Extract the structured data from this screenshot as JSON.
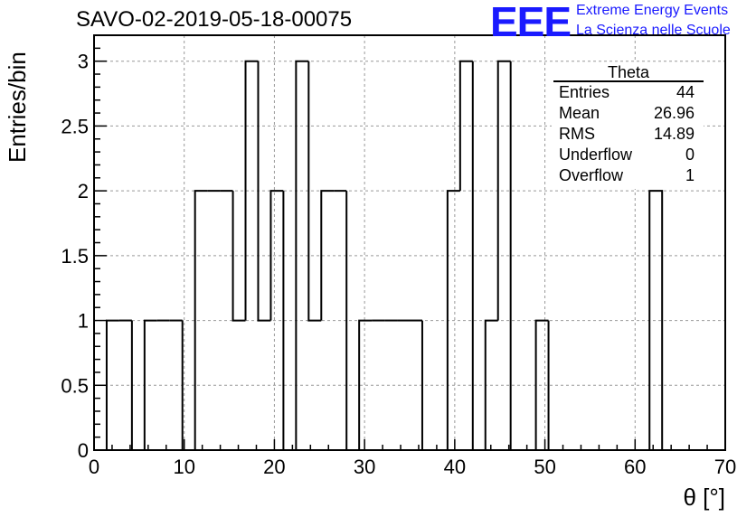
{
  "title": "SAVO-02-2019-05-18-00075",
  "logo": {
    "mark": "EEE",
    "line1": "Extreme Energy Events",
    "line2": "La Scienza nelle Scuole",
    "color": "#1a1aff"
  },
  "stats_box": {
    "title": "Theta",
    "rows": [
      {
        "label": "Entries",
        "value": "44"
      },
      {
        "label": "Mean",
        "value": "26.96"
      },
      {
        "label": "RMS",
        "value": "14.89"
      },
      {
        "label": "Underflow",
        "value": "0"
      },
      {
        "label": "Overflow",
        "value": "1"
      }
    ]
  },
  "chart_data": {
    "type": "bar",
    "histogram": true,
    "xlabel": "θ [°]",
    "ylabel": "Entries/bin",
    "xlim": [
      0,
      70
    ],
    "ylim": [
      0,
      3.2
    ],
    "grid": true,
    "xticks": [
      0,
      10,
      20,
      30,
      40,
      50,
      60,
      70
    ],
    "yticks": [
      0,
      0.5,
      1,
      1.5,
      2,
      2.5,
      3
    ],
    "ytick_labels": [
      "0",
      "0.5",
      "1",
      "1.5",
      "2",
      "2.5",
      "3"
    ],
    "bin_edges": [
      1.4,
      2.8,
      4.2,
      5.6,
      7.0,
      8.4,
      9.8,
      11.2,
      12.6,
      14.0,
      15.4,
      16.8,
      18.2,
      19.6,
      21.0,
      22.4,
      23.8,
      25.2,
      26.6,
      28.0,
      29.4,
      30.8,
      32.2,
      33.6,
      35.0,
      36.4,
      37.8,
      39.2,
      40.6,
      42.0,
      43.4,
      44.8,
      46.2,
      47.6,
      49.0,
      50.4,
      51.8,
      53.2,
      54.6,
      56.0,
      57.4,
      58.8,
      60.2,
      61.6,
      63.0
    ],
    "values": [
      1,
      1,
      0,
      1,
      1,
      1,
      0,
      2,
      2,
      2,
      1,
      3,
      1,
      2,
      0,
      3,
      1,
      2,
      2,
      0,
      1,
      1,
      1,
      1,
      1,
      0,
      0,
      2,
      3,
      0,
      1,
      3,
      0,
      0,
      1,
      0,
      0,
      0,
      0,
      0,
      0,
      0,
      0,
      2
    ],
    "line_color": "#000000"
  }
}
